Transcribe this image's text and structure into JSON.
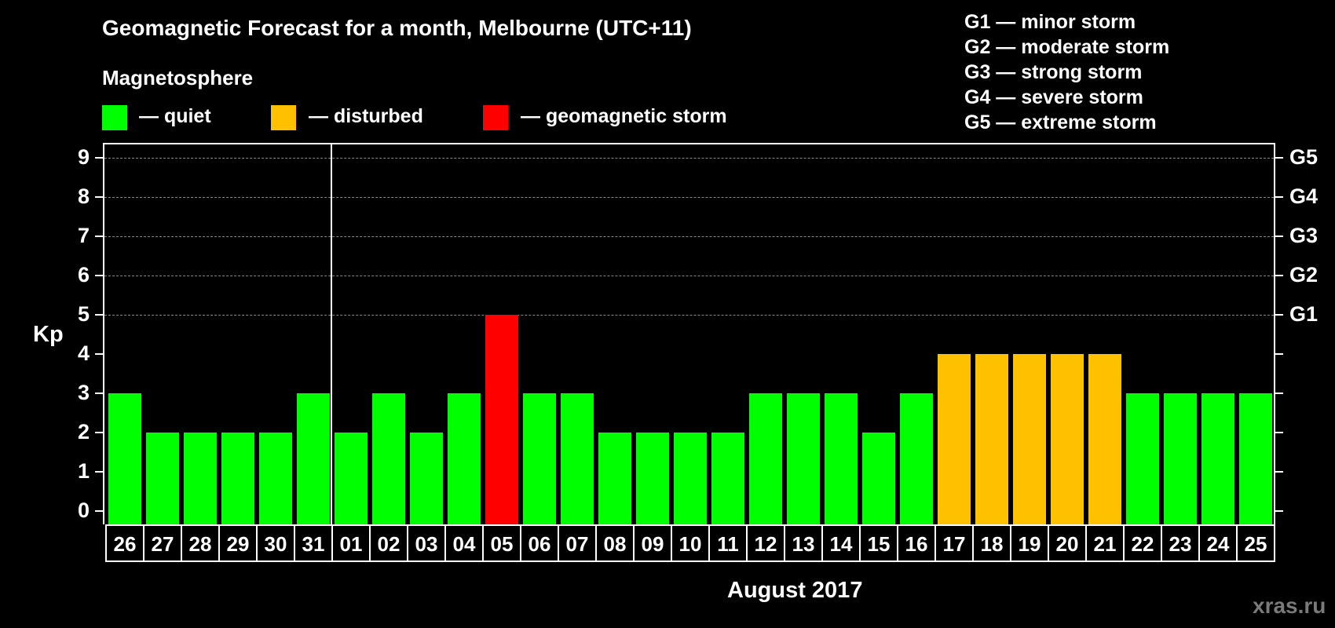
{
  "header": {
    "title": "Geomagnetic Forecast for a month, Melbourne (UTC+11)",
    "subtitle": "Magnetosphere"
  },
  "legend": [
    {
      "label": "— quiet",
      "color": "#00ff00"
    },
    {
      "label": "— disturbed",
      "color": "#ffc000"
    },
    {
      "label": "— geomagnetic storm",
      "color": "#ff0000"
    }
  ],
  "storm_scale": [
    "G1 — minor storm",
    "G2 — moderate storm",
    "G3 — strong storm",
    "G4 — severe storm",
    "G5 — extreme storm"
  ],
  "watermark": "xras.ru",
  "chart_data": {
    "type": "bar",
    "title": "Geomagnetic Forecast for a month, Melbourne (UTC+11)",
    "xlabel": "August 2017",
    "ylabel": "Kp",
    "ylim": [
      0,
      9
    ],
    "yticks": [
      "0",
      "1",
      "2",
      "3",
      "4",
      "5",
      "6",
      "7",
      "8",
      "9"
    ],
    "right_ticks": [
      {
        "value": 5,
        "label": "G1"
      },
      {
        "value": 6,
        "label": "G2"
      },
      {
        "value": 7,
        "label": "G3"
      },
      {
        "value": 8,
        "label": "G4"
      },
      {
        "value": 9,
        "label": "G5"
      }
    ],
    "grid": "dashed horizontal at 5-9",
    "month_separator_after_index": 5,
    "categories": [
      "26",
      "27",
      "28",
      "29",
      "30",
      "31",
      "01",
      "02",
      "03",
      "04",
      "05",
      "06",
      "07",
      "08",
      "09",
      "10",
      "11",
      "12",
      "13",
      "14",
      "15",
      "16",
      "17",
      "18",
      "19",
      "20",
      "21",
      "22",
      "23",
      "24",
      "25"
    ],
    "values": [
      3,
      2,
      2,
      2,
      2,
      3,
      2,
      3,
      2,
      3,
      5,
      3,
      3,
      2,
      2,
      2,
      2,
      3,
      3,
      3,
      2,
      3,
      4,
      4,
      4,
      4,
      4,
      3,
      3,
      3,
      3
    ],
    "status": [
      "quiet",
      "quiet",
      "quiet",
      "quiet",
      "quiet",
      "quiet",
      "quiet",
      "quiet",
      "quiet",
      "quiet",
      "storm",
      "quiet",
      "quiet",
      "quiet",
      "quiet",
      "quiet",
      "quiet",
      "quiet",
      "quiet",
      "quiet",
      "quiet",
      "quiet",
      "disturbed",
      "disturbed",
      "disturbed",
      "disturbed",
      "disturbed",
      "quiet",
      "quiet",
      "quiet",
      "quiet"
    ],
    "colors": {
      "quiet": "#00ff00",
      "disturbed": "#ffc000",
      "storm": "#ff0000"
    }
  }
}
